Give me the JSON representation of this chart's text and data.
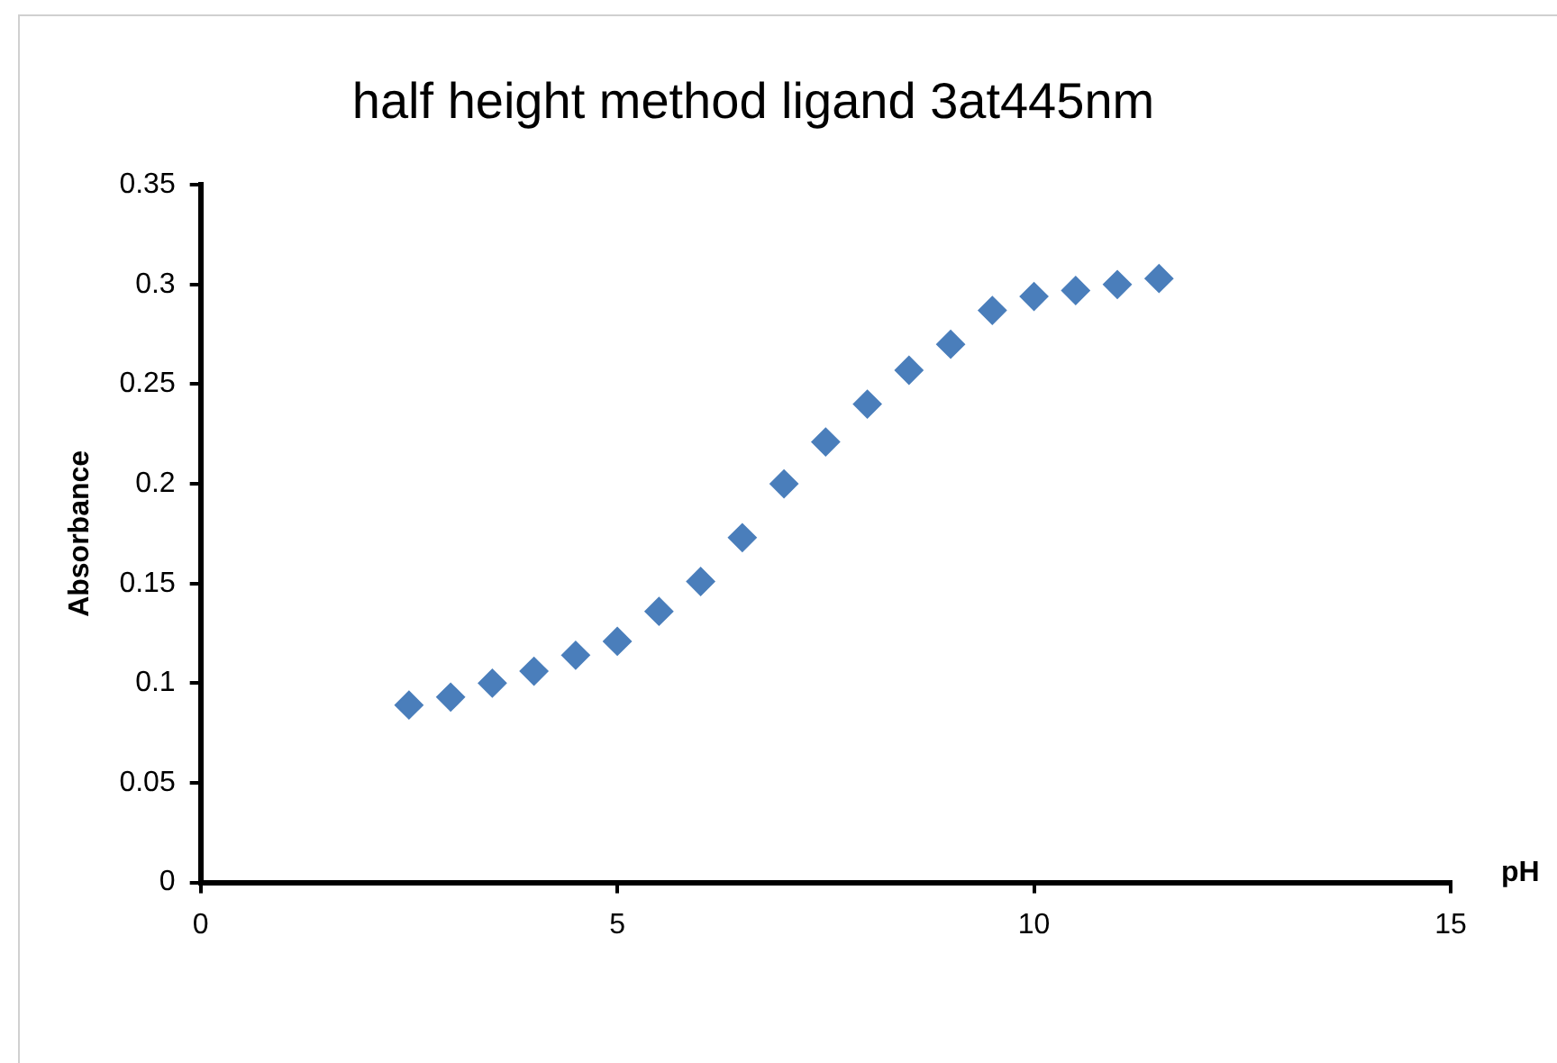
{
  "chart_data": {
    "type": "scatter",
    "title": "half height method ligand 3at445nm",
    "xlabel": "pH",
    "ylabel": "Absorbance",
    "x": [
      2.5,
      3,
      3.5,
      4,
      4.5,
      5,
      5.5,
      6,
      6.5,
      7,
      7.5,
      8,
      8.5,
      9,
      9.5,
      10,
      10.5,
      11,
      11.5
    ],
    "series": [
      {
        "color": "#4a7ebb",
        "values": [
          0.089,
          0.093,
          0.1,
          0.106,
          0.114,
          0.121,
          0.136,
          0.151,
          0.173,
          0.2,
          0.221,
          0.24,
          0.257,
          0.27,
          0.287,
          0.294,
          0.297,
          0.3,
          0.303
        ]
      }
    ],
    "xlim": [
      0,
      15
    ],
    "xticks": [
      0,
      5,
      10,
      15
    ],
    "ylim": [
      0,
      0.35
    ],
    "yticks": [
      0,
      0.05,
      0.1,
      0.15,
      0.2,
      0.25,
      0.3,
      0.35
    ],
    "grid": false,
    "legend": false,
    "marker": "diamond"
  }
}
